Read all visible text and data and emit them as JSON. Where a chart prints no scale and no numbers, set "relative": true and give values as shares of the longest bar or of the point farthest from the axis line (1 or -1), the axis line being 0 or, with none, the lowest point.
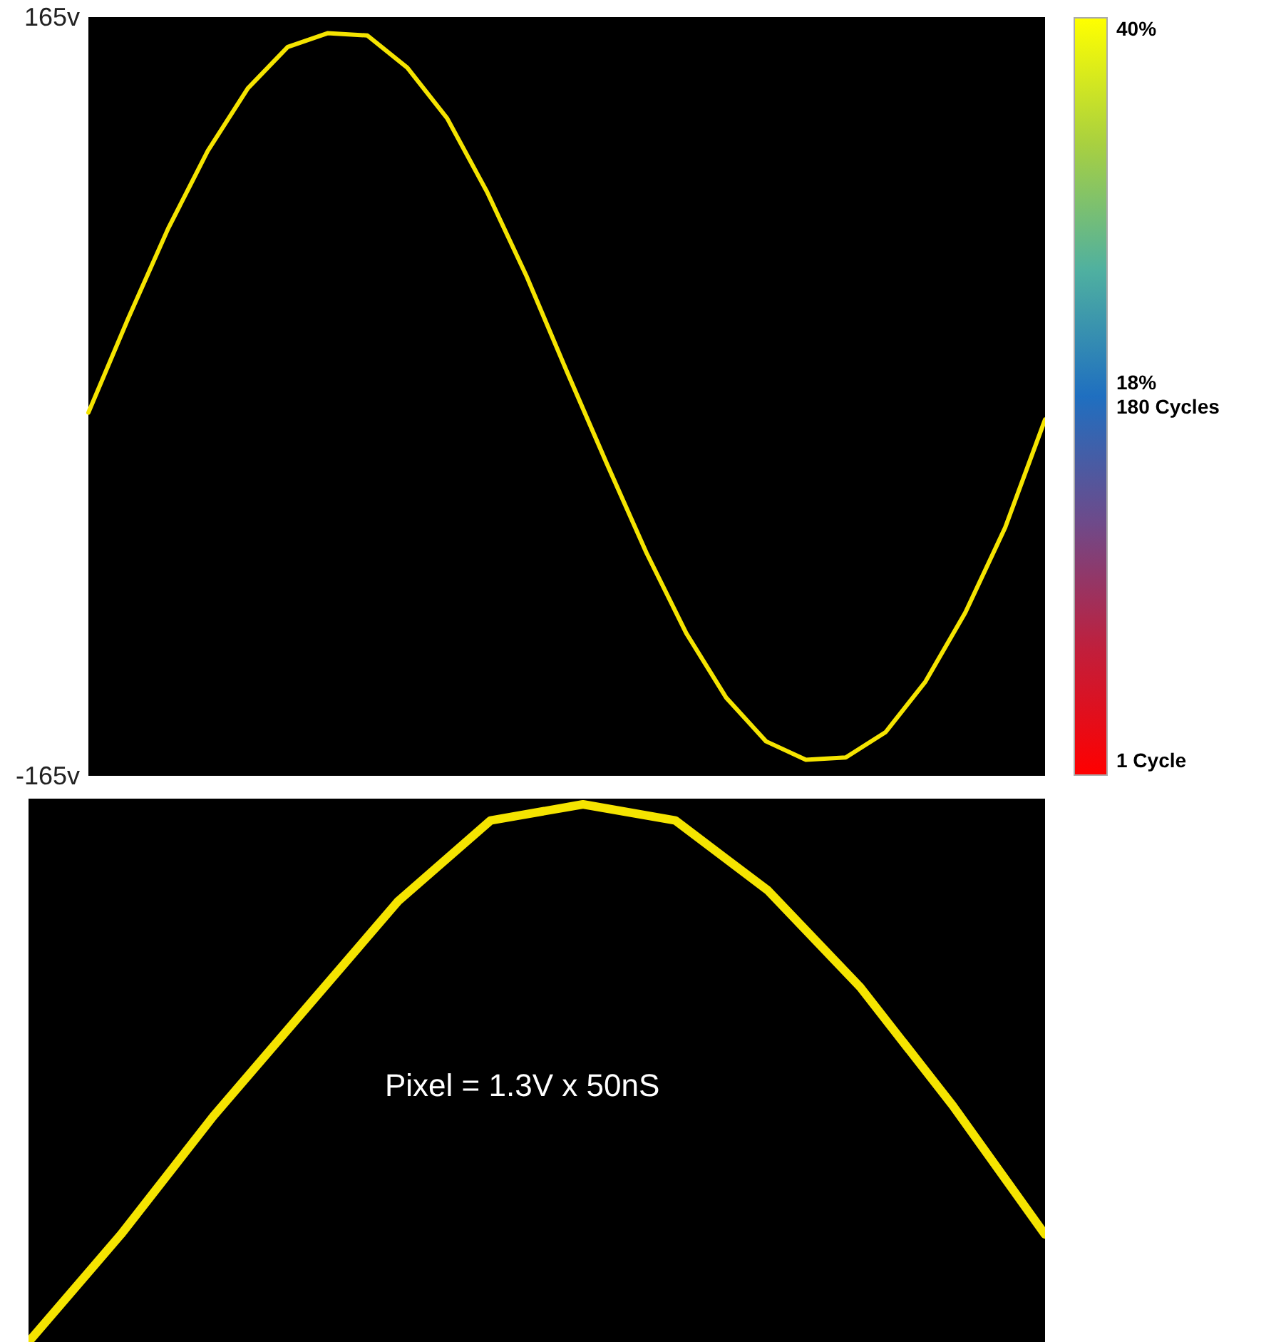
{
  "chart_data": [
    {
      "type": "line",
      "categories": [
        null,
        null,
        null,
        null,
        null,
        null,
        null,
        null,
        null,
        null,
        null,
        null,
        null,
        null,
        null,
        null,
        null,
        null,
        null,
        null,
        null,
        null,
        null,
        null,
        null
      ],
      "series": [
        {
          "color": "#f5e400",
          "values": [
            -7,
            34,
            73,
            107,
            134,
            152,
            158,
            157,
            143,
            121,
            89,
            52,
            11,
            -29,
            -68,
            -103,
            -131,
            -150,
            -158,
            -157,
            -146,
            -124,
            -94,
            -57,
            -10
          ]
        }
      ],
      "ylim": [
        -165,
        165
      ],
      "yticks": [
        {
          "value": 165,
          "label": "165v"
        },
        {
          "value": -165,
          "label": "-165v"
        }
      ],
      "annotations": [
        "40%",
        "18%\n180 Cycles",
        "1 Cycle"
      ],
      "marker": "none",
      "line_style": "solid",
      "tick_labels": "y"
    },
    {
      "type": "line",
      "relative": true,
      "categories": [
        null,
        null,
        null,
        null,
        null,
        null,
        null,
        null,
        null,
        null,
        null,
        null
      ],
      "series": [
        {
          "color": "#f5e400",
          "values": [
            0,
            0.2,
            0.42,
            0.62,
            0.82,
            0.97,
            1,
            0.97,
            0.84,
            0.66,
            0.44,
            0.2
          ]
        }
      ],
      "annotations": [
        "Pixel = 1.3V x 50nS"
      ],
      "marker": "none",
      "line_style": "solid",
      "tick_labels": false
    }
  ]
}
